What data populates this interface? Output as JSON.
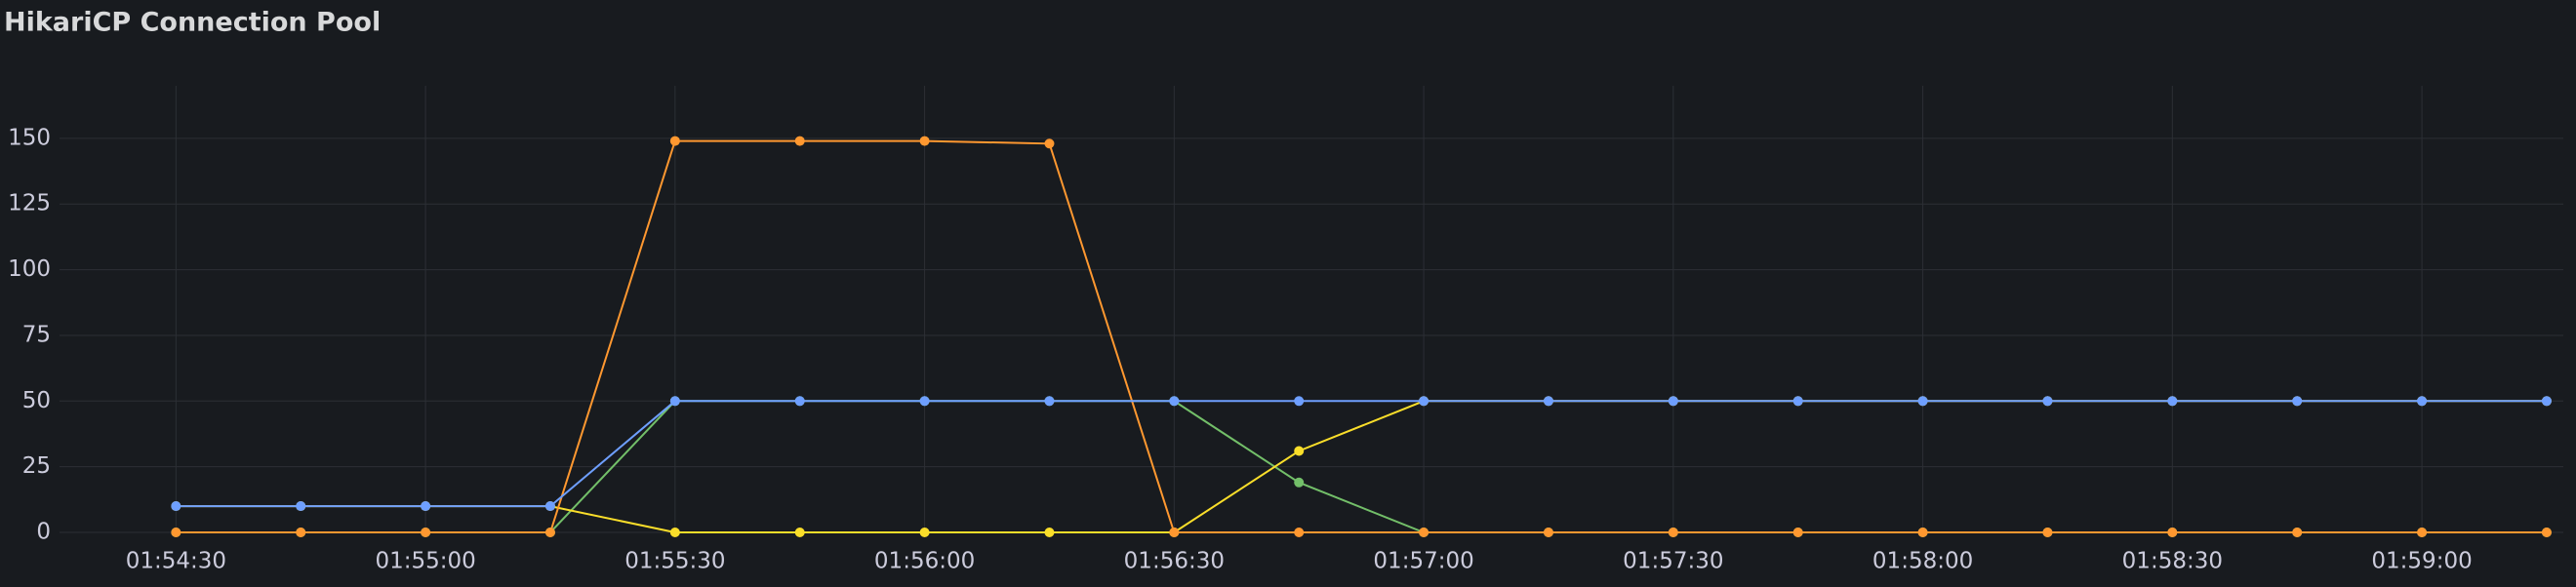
{
  "chart_data": {
    "type": "line",
    "title": "HikariCP Connection Pool",
    "x": [
      "01:54:30",
      "01:54:45",
      "01:55:00",
      "01:55:15",
      "01:55:30",
      "01:55:45",
      "01:56:00",
      "01:56:15",
      "01:56:30",
      "01:56:45",
      "01:57:00",
      "01:57:15",
      "01:57:30",
      "01:57:45",
      "01:58:00",
      "01:58:15",
      "01:58:30",
      "01:58:45",
      "01:59:00",
      "01:59:15"
    ],
    "series": [
      {
        "color": "#73bf69",
        "values": [
          0,
          0,
          0,
          0,
          50,
          50,
          50,
          50,
          50,
          19,
          0,
          0,
          0,
          0,
          0,
          0,
          0,
          0,
          0,
          0
        ]
      },
      {
        "color": "#fade2a",
        "values": [
          10,
          10,
          10,
          10,
          0,
          0,
          0,
          0,
          0,
          31,
          50,
          50,
          50,
          50,
          50,
          50,
          50,
          50,
          50,
          50
        ]
      },
      {
        "color": "#ff9830",
        "values": [
          0,
          0,
          0,
          0,
          149,
          149,
          149,
          148,
          0,
          0,
          0,
          0,
          0,
          0,
          0,
          0,
          0,
          0,
          0,
          0
        ]
      },
      {
        "color": "#6e9fff",
        "values": [
          10,
          10,
          10,
          10,
          50,
          50,
          50,
          50,
          50,
          50,
          50,
          50,
          50,
          50,
          50,
          50,
          50,
          50,
          50,
          50
        ]
      }
    ],
    "xlim": [
      "01:54:16",
      "01:59:17"
    ],
    "xticks": [
      "01:54:30",
      "01:55:00",
      "01:55:30",
      "01:56:00",
      "01:56:30",
      "01:57:00",
      "01:57:30",
      "01:58:00",
      "01:58:30",
      "01:59:00"
    ],
    "ylim": [
      0,
      170
    ],
    "yticks": [
      0,
      25,
      50,
      75,
      100,
      125,
      150
    ],
    "grid": true
  }
}
